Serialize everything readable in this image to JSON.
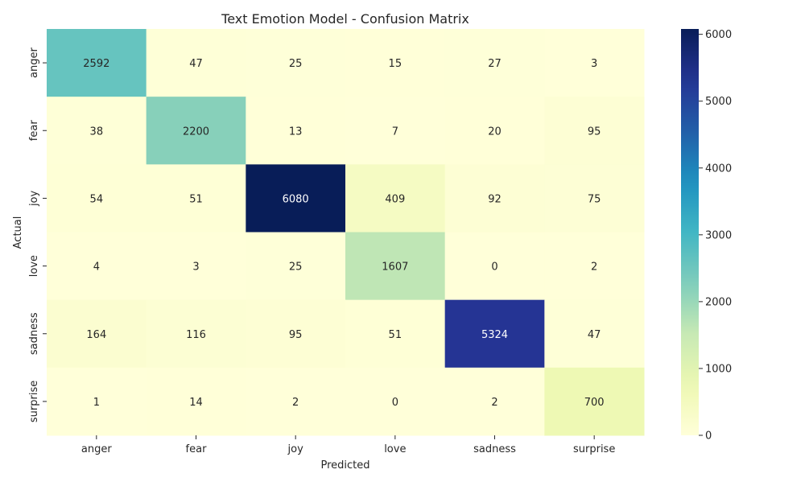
{
  "chart_data": {
    "type": "heatmap",
    "title": "Text Emotion Model - Confusion Matrix",
    "xlabel": "Predicted",
    "ylabel": "Actual",
    "x_categories": [
      "anger",
      "fear",
      "joy",
      "love",
      "sadness",
      "surprise"
    ],
    "y_categories": [
      "anger",
      "fear",
      "joy",
      "love",
      "sadness",
      "surprise"
    ],
    "values": [
      [
        2592,
        47,
        25,
        15,
        27,
        3
      ],
      [
        38,
        2200,
        13,
        7,
        20,
        95
      ],
      [
        54,
        51,
        6080,
        409,
        92,
        75
      ],
      [
        4,
        3,
        25,
        1607,
        0,
        2
      ],
      [
        164,
        116,
        95,
        51,
        5324,
        47
      ],
      [
        1,
        14,
        2,
        0,
        2,
        700
      ]
    ],
    "colormap": "YlGnBu",
    "colorbar": {
      "range": [
        0,
        6080
      ],
      "ticks": [
        0,
        1000,
        2000,
        3000,
        4000,
        5000,
        6000
      ]
    },
    "annotations": true,
    "grid": false
  }
}
